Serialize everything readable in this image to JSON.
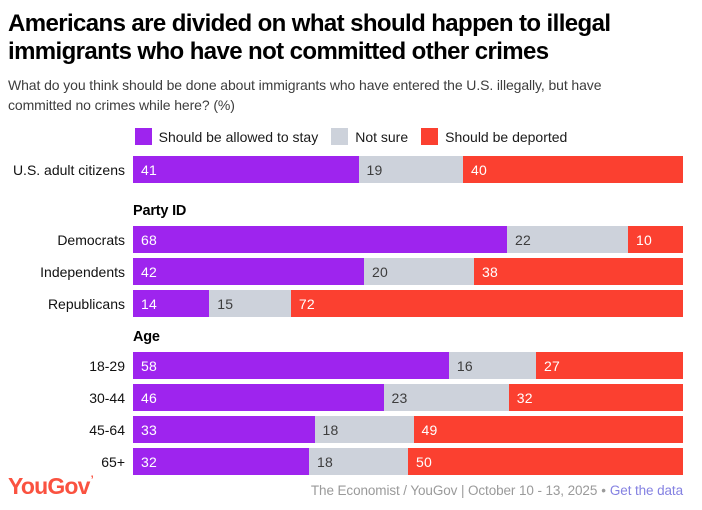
{
  "header": {
    "title": "Americans are divided on what should happen to illegal immigrants who have not committed other crimes",
    "subtitle": "What do you think should be done about immigrants who have entered the U.S. illegally, but have committed no crimes while here? (%)"
  },
  "legend": {
    "items": [
      {
        "label": "Should be allowed to stay",
        "color": "#9E24EE"
      },
      {
        "label": "Not sure",
        "color": "#CDD2DB"
      },
      {
        "label": "Should be deported",
        "color": "#FB4030"
      }
    ]
  },
  "chart_data": {
    "type": "bar",
    "variant": "horizontal_stacked",
    "unit": "%",
    "x_range": [
      0,
      100
    ],
    "grid": false,
    "legend_position": "top-center",
    "series_names": [
      "Should be allowed to stay",
      "Not sure",
      "Should be deported"
    ],
    "colors": {
      "stay": "#9E24EE",
      "not_sure": "#CDD2DB",
      "deported": "#FB4030"
    },
    "sections": {
      "party": "Party ID",
      "age": "Age"
    },
    "rows": [
      {
        "label": "U.S. adult citizens",
        "group": null,
        "stay": 41,
        "not_sure": 19,
        "deported": 40
      },
      {
        "label": "Democrats",
        "group": "Party ID",
        "stay": 68,
        "not_sure": 22,
        "deported": 10
      },
      {
        "label": "Independents",
        "group": "Party ID",
        "stay": 42,
        "not_sure": 20,
        "deported": 38
      },
      {
        "label": "Republicans",
        "group": "Party ID",
        "stay": 14,
        "not_sure": 15,
        "deported": 72
      },
      {
        "label": "18-29",
        "group": "Age",
        "stay": 58,
        "not_sure": 16,
        "deported": 27
      },
      {
        "label": "30-44",
        "group": "Age",
        "stay": 46,
        "not_sure": 23,
        "deported": 32
      },
      {
        "label": "45-64",
        "group": "Age",
        "stay": 33,
        "not_sure": 18,
        "deported": 49
      },
      {
        "label": "65+",
        "group": "Age",
        "stay": 32,
        "not_sure": 18,
        "deported": 50
      }
    ]
  },
  "footer": {
    "logo": "YouGov",
    "logo_mark": "’",
    "logo_color": "#FA5240",
    "source": "The Economist / YouGov | October 10 - 13, 2025",
    "separator": "•",
    "link": "Get the data",
    "link_color": "#8582E2"
  }
}
